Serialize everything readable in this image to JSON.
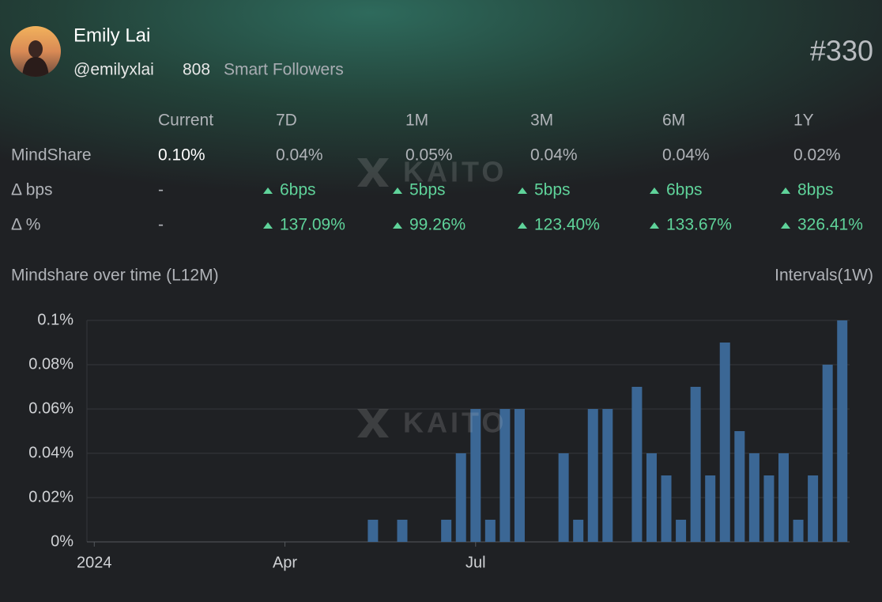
{
  "profile": {
    "name": "Emily Lai",
    "handle": "@emilyxlai",
    "followers": "808",
    "followers_label": "Smart Followers",
    "rank": "#330"
  },
  "watermark": "KAITO",
  "table": {
    "columns": [
      "Current",
      "7D",
      "1M",
      "3M",
      "6M",
      "1Y"
    ],
    "rows": [
      {
        "label": "MindShare",
        "cells": [
          "0.10%",
          "0.04%",
          "0.05%",
          "0.04%",
          "0.04%",
          "0.02%"
        ]
      },
      {
        "label": "Δ bps",
        "cells": [
          "-",
          "6bps",
          "5bps",
          "5bps",
          "6bps",
          "8bps"
        ]
      },
      {
        "label": "Δ %",
        "cells": [
          "-",
          "137.09%",
          "99.26%",
          "123.40%",
          "133.67%",
          "326.41%"
        ]
      }
    ]
  },
  "chart_data": {
    "type": "bar",
    "title": "Mindshare over time (L12M)",
    "interval": "Intervals(1W)",
    "color": "#3b6795",
    "categories": [
      "2024",
      null,
      null,
      null,
      null,
      null,
      null,
      null,
      null,
      null,
      null,
      null,
      null,
      "Apr",
      null,
      null,
      null,
      null,
      null,
      null,
      null,
      null,
      null,
      null,
      null,
      null,
      "Jul",
      null,
      null,
      null,
      null,
      null,
      null,
      null,
      null,
      null,
      null,
      null,
      null,
      null,
      null,
      null,
      null,
      null,
      null,
      null,
      null,
      null,
      null,
      null,
      null,
      null
    ],
    "values": [
      0,
      0,
      0,
      0,
      0,
      0,
      0,
      0,
      0,
      0,
      0,
      0,
      0,
      0,
      0,
      0,
      0,
      0,
      0,
      0.01,
      0,
      0.01,
      0,
      0,
      0.01,
      0.04,
      0.06,
      0.01,
      0.06,
      0.06,
      0,
      0,
      0.04,
      0.01,
      0.06,
      0.06,
      0,
      0.07,
      0.04,
      0.03,
      0.01,
      0.07,
      0.03,
      0.09,
      0.05,
      0.04,
      0.03,
      0.04,
      0.01,
      0.03,
      0.08,
      0.1
    ],
    "ylim": [
      0,
      0.1
    ],
    "yticks": [
      {
        "value": 0,
        "label": "0%"
      },
      {
        "value": 0.02,
        "label": "0.02%"
      },
      {
        "value": 0.04,
        "label": "0.04%"
      },
      {
        "value": 0.06,
        "label": "0.06%"
      },
      {
        "value": 0.08,
        "label": "0.08%"
      },
      {
        "value": 0.1,
        "label": "0.1%"
      }
    ],
    "grid": true
  }
}
